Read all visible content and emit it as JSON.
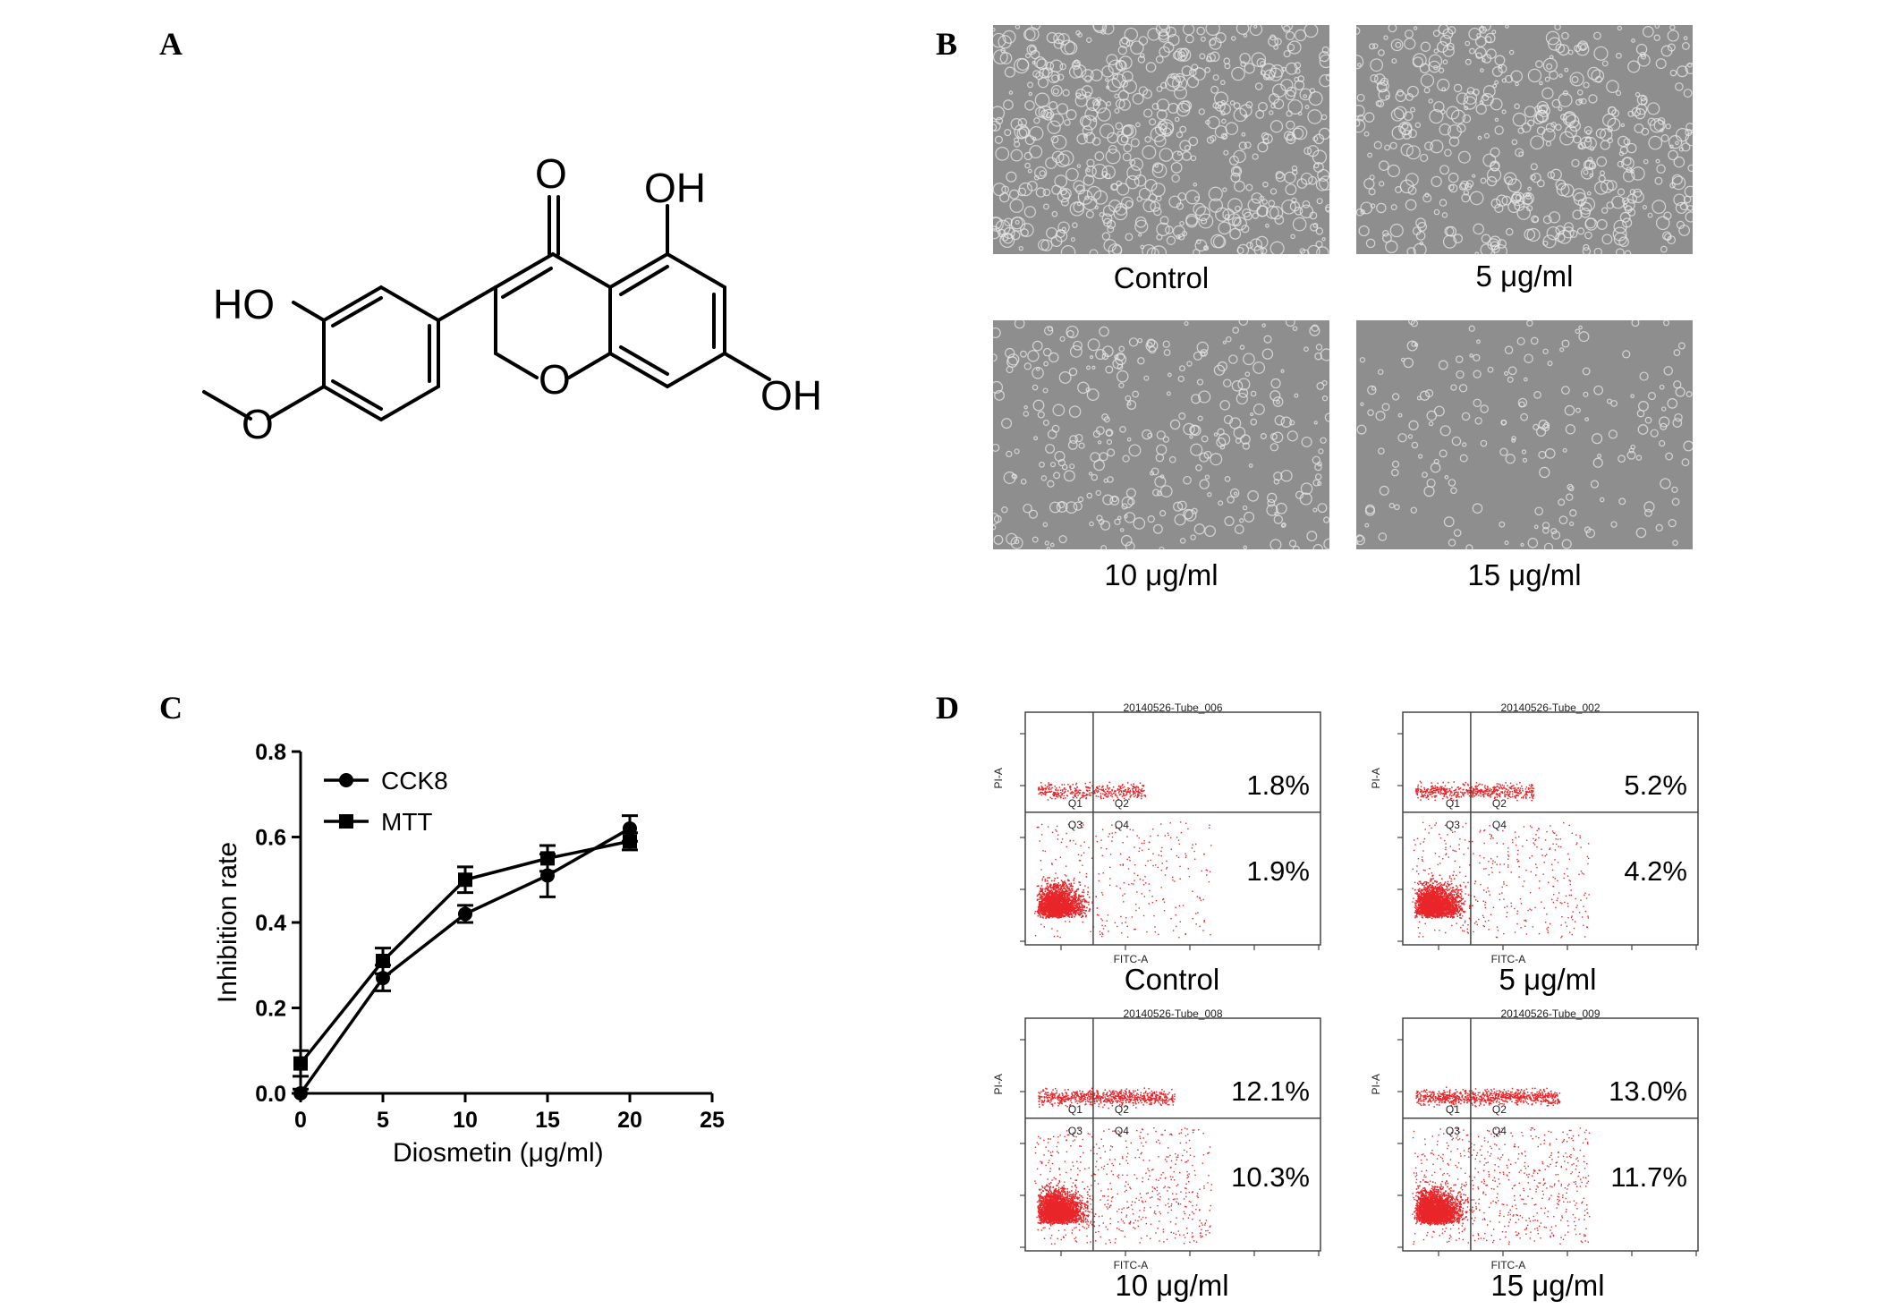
{
  "panels": {
    "a": {
      "letter": "A"
    },
    "b": {
      "letter": "B",
      "captions": [
        "Control",
        "5 μg/ml",
        "10 μg/ml",
        "15 μg/ml"
      ]
    },
    "c": {
      "letter": "C"
    },
    "d": {
      "letter": "D",
      "captions": [
        "Control",
        "5 μg/ml",
        "10 μg/ml",
        "15 μg/ml"
      ]
    }
  },
  "structure": {
    "atoms": {
      "o_ketone": "O",
      "oh_5": "OH",
      "oh_7": "OH",
      "o_ring": "O",
      "ho_3p": "HO",
      "o_methoxy": "O"
    }
  },
  "chart_data": {
    "type": "line",
    "xlabel": "Diosmetin (μg/ml)",
    "ylabel": "Inhibition rate",
    "xlim": [
      0,
      25
    ],
    "ylim": [
      0,
      0.8
    ],
    "xticks": [
      "0",
      "5",
      "10",
      "15",
      "20",
      "25"
    ],
    "yticks": [
      "0.0",
      "0.2",
      "0.4",
      "0.6",
      "0.8"
    ],
    "legend": "top-left",
    "x": [
      0,
      5,
      10,
      15,
      20
    ],
    "series": [
      {
        "name": "CCK8",
        "marker": "circle",
        "values": [
          0.0,
          0.27,
          0.42,
          0.51,
          0.62
        ],
        "errors": [
          0.01,
          0.03,
          0.02,
          0.05,
          0.03
        ]
      },
      {
        "name": "MTT",
        "marker": "square",
        "values": [
          0.07,
          0.31,
          0.5,
          0.55,
          0.59
        ],
        "errors": [
          0.03,
          0.03,
          0.03,
          0.03,
          0.02
        ]
      }
    ]
  },
  "flow_plots": [
    {
      "title": "20140526-Tube_006",
      "upper_pct": "1.8%",
      "lower_pct": "1.9%",
      "caption": "Control",
      "density": 0.45
    },
    {
      "title": "20140526-Tube_002",
      "upper_pct": "5.2%",
      "lower_pct": "4.2%",
      "caption": "5 μg/ml",
      "density": 0.6
    },
    {
      "title": "20140526-Tube_008",
      "upper_pct": "12.1%",
      "lower_pct": "10.3%",
      "caption": "10 μg/ml",
      "density": 0.85
    },
    {
      "title": "20140526-Tube_009",
      "upper_pct": "13.0%",
      "lower_pct": "11.7%",
      "caption": "15 μg/ml",
      "density": 0.95
    }
  ],
  "flow_axis": {
    "x_label": "FITC-A",
    "y_label": "PI-A",
    "q1": "Q1",
    "q2": "Q2",
    "q3": "Q3",
    "q4": "Q4"
  },
  "colors": {
    "dots": "#e8262a",
    "micro_bg": "#8e8e8e",
    "cells": "#e6e6e6"
  }
}
